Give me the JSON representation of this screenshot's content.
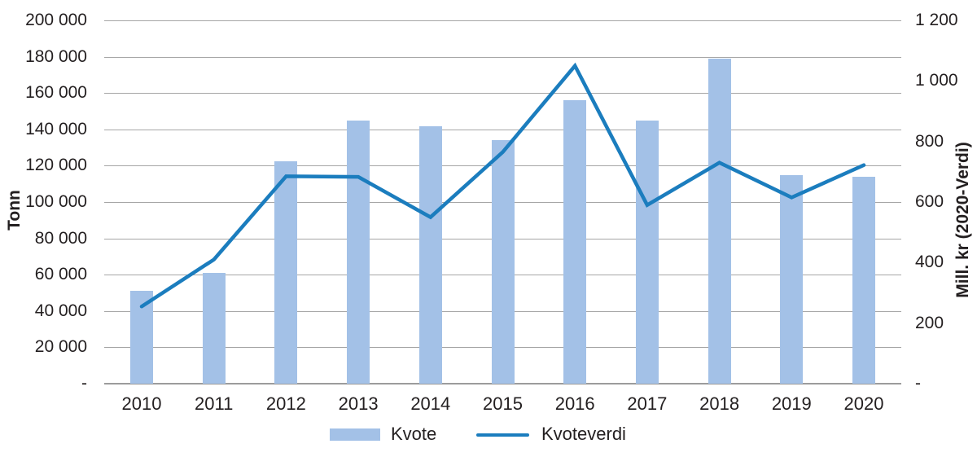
{
  "chart_data": {
    "type": "combo-bar-line",
    "categories": [
      "2010",
      "2011",
      "2012",
      "2013",
      "2014",
      "2015",
      "2016",
      "2017",
      "2018",
      "2019",
      "2020"
    ],
    "series": [
      {
        "name": "Kvote",
        "type": "bar",
        "axis": "left",
        "unit": "tonn",
        "values": [
          51000,
          61000,
          122500,
          145000,
          141500,
          134000,
          156000,
          145000,
          179000,
          115000,
          114000
        ]
      },
      {
        "name": "Kvoteverdi",
        "type": "line",
        "axis": "right",
        "unit": "mill. kr",
        "values": [
          255,
          410,
          685,
          683,
          550,
          765,
          1050,
          590,
          730,
          615,
          722
        ]
      }
    ],
    "left_axis": {
      "title": "Tonn",
      "min": 0,
      "max": 200000,
      "ticks": [
        {
          "v": 200000,
          "label": "200 000"
        },
        {
          "v": 180000,
          "label": "180 000"
        },
        {
          "v": 160000,
          "label": "160 000"
        },
        {
          "v": 140000,
          "label": "140 000"
        },
        {
          "v": 120000,
          "label": "120 000"
        },
        {
          "v": 100000,
          "label": "100 000"
        },
        {
          "v": 80000,
          "label": "80 000"
        },
        {
          "v": 60000,
          "label": "60 000"
        },
        {
          "v": 40000,
          "label": "40 000"
        },
        {
          "v": 20000,
          "label": "20 000"
        },
        {
          "v": 0,
          "label": "-"
        }
      ]
    },
    "right_axis": {
      "title": "Mill. kr (2020-Verdi)",
      "min": 0,
      "max": 1200,
      "ticks": [
        {
          "v": 1200,
          "label": "1 200"
        },
        {
          "v": 1000,
          "label": "1 000"
        },
        {
          "v": 800,
          "label": "800"
        },
        {
          "v": 600,
          "label": "600"
        },
        {
          "v": 400,
          "label": "400"
        },
        {
          "v": 200,
          "label": "200"
        },
        {
          "v": 0,
          "label": "-"
        }
      ]
    },
    "gridlines": {
      "show": true,
      "interval_left": 20000
    },
    "legend_position": "bottom"
  },
  "legend": {
    "kvote_label": "Kvote",
    "kvoteverdi_label": "Kvoteverdi"
  },
  "colors": {
    "bar": "#a3c1e7",
    "line": "#1b7dbe",
    "grid": "#a6a6a6",
    "axis_line": "#9c9c9c",
    "text": "#231f20"
  }
}
